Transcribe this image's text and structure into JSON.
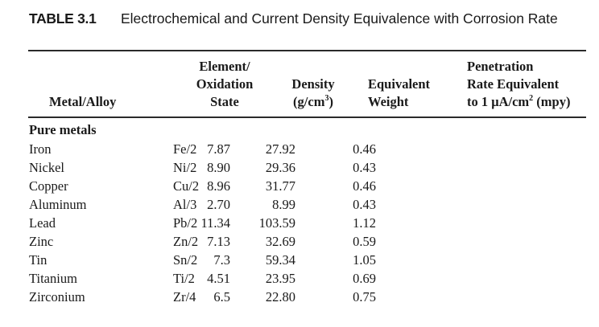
{
  "caption": {
    "label": "TABLE 3.1",
    "title": "Electrochemical and Current Density Equivalence with Corrosion Rate"
  },
  "table": {
    "headers": {
      "metal_alloy": [
        "Metal/Alloy"
      ],
      "element_state": [
        "Element/",
        "Oxidation",
        "State"
      ],
      "density": [
        "Density",
        "(g/cm",
        "3",
        ")"
      ],
      "equivalent_weight": [
        "Equivalent",
        "Weight"
      ],
      "penetration": [
        "Penetration",
        "Rate Equivalent",
        "to 1 μA/cm",
        "2",
        " (mpy)"
      ]
    },
    "section_label": "Pure metals",
    "rows": [
      {
        "metal": "Iron",
        "state": "Fe/2",
        "density": "7.87",
        "equivalent_weight": "27.92",
        "penetration": "0.46"
      },
      {
        "metal": "Nickel",
        "state": "Ni/2",
        "density": "8.90",
        "equivalent_weight": "29.36",
        "penetration": "0.43"
      },
      {
        "metal": "Copper",
        "state": "Cu/2",
        "density": "8.96",
        "equivalent_weight": "31.77",
        "penetration": "0.46"
      },
      {
        "metal": "Aluminum",
        "state": "Al/3",
        "density": "2.70",
        "equivalent_weight": "8.99",
        "penetration": "0.43"
      },
      {
        "metal": "Lead",
        "state": "Pb/2",
        "density": "11.34",
        "equivalent_weight": "103.59",
        "penetration": "1.12"
      },
      {
        "metal": "Zinc",
        "state": "Zn/2",
        "density": "7.13",
        "equivalent_weight": "32.69",
        "penetration": "0.59"
      },
      {
        "metal": "Tin",
        "state": "Sn/2",
        "density": "7.3",
        "equivalent_weight": "59.34",
        "penetration": "1.05"
      },
      {
        "metal": "Titanium",
        "state": "Ti/2",
        "density": "4.51",
        "equivalent_weight": "23.95",
        "penetration": "0.69"
      },
      {
        "metal": "Zirconium",
        "state": "Zr/4",
        "density": "6.5",
        "equivalent_weight": "22.80",
        "penetration": "0.75"
      }
    ]
  }
}
